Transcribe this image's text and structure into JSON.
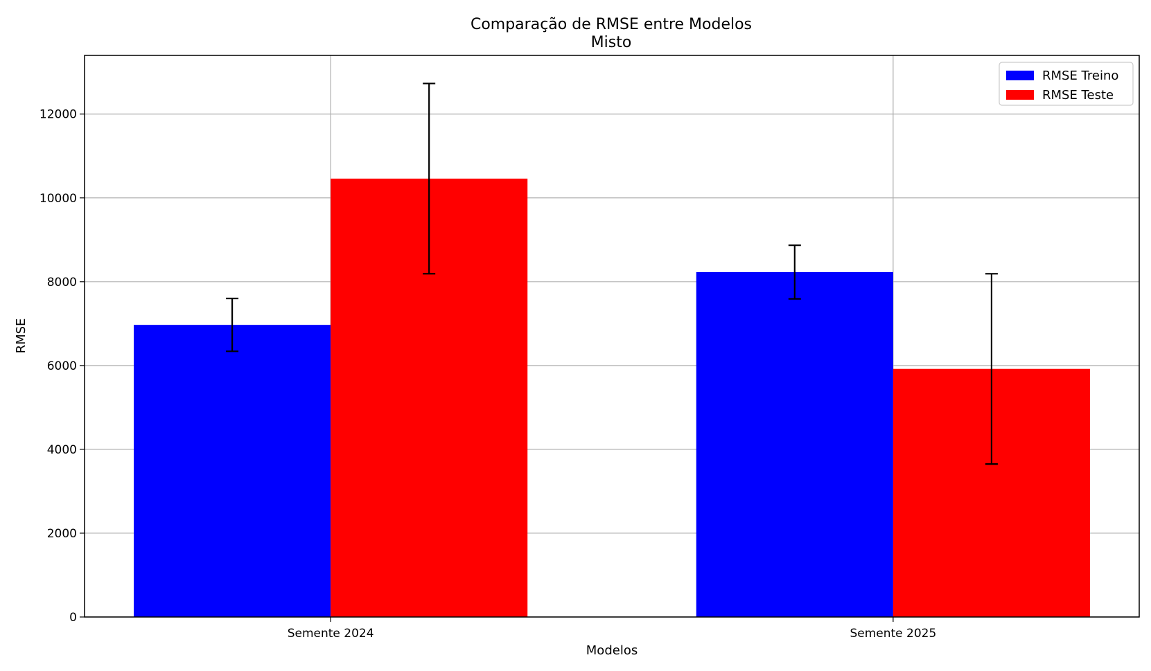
{
  "chart_data": {
    "type": "bar",
    "title": "Comparação de RMSE entre Modelos",
    "subtitle": "Misto",
    "xlabel": "Modelos",
    "ylabel": "RMSE",
    "categories": [
      "Semente 2024",
      "Semente 2025"
    ],
    "series": [
      {
        "name": "RMSE Treino",
        "color": "#0000ff",
        "values": [
          6970,
          8230
        ],
        "errors": [
          630,
          640
        ]
      },
      {
        "name": "RMSE Teste",
        "color": "#ff0000",
        "values": [
          10460,
          5920
        ],
        "errors": [
          2270,
          2270
        ]
      }
    ],
    "ylim": [
      0,
      13400
    ],
    "yticks": [
      0,
      2000,
      4000,
      6000,
      8000,
      10000,
      12000
    ],
    "grid": true,
    "legend_position": "top-right"
  }
}
